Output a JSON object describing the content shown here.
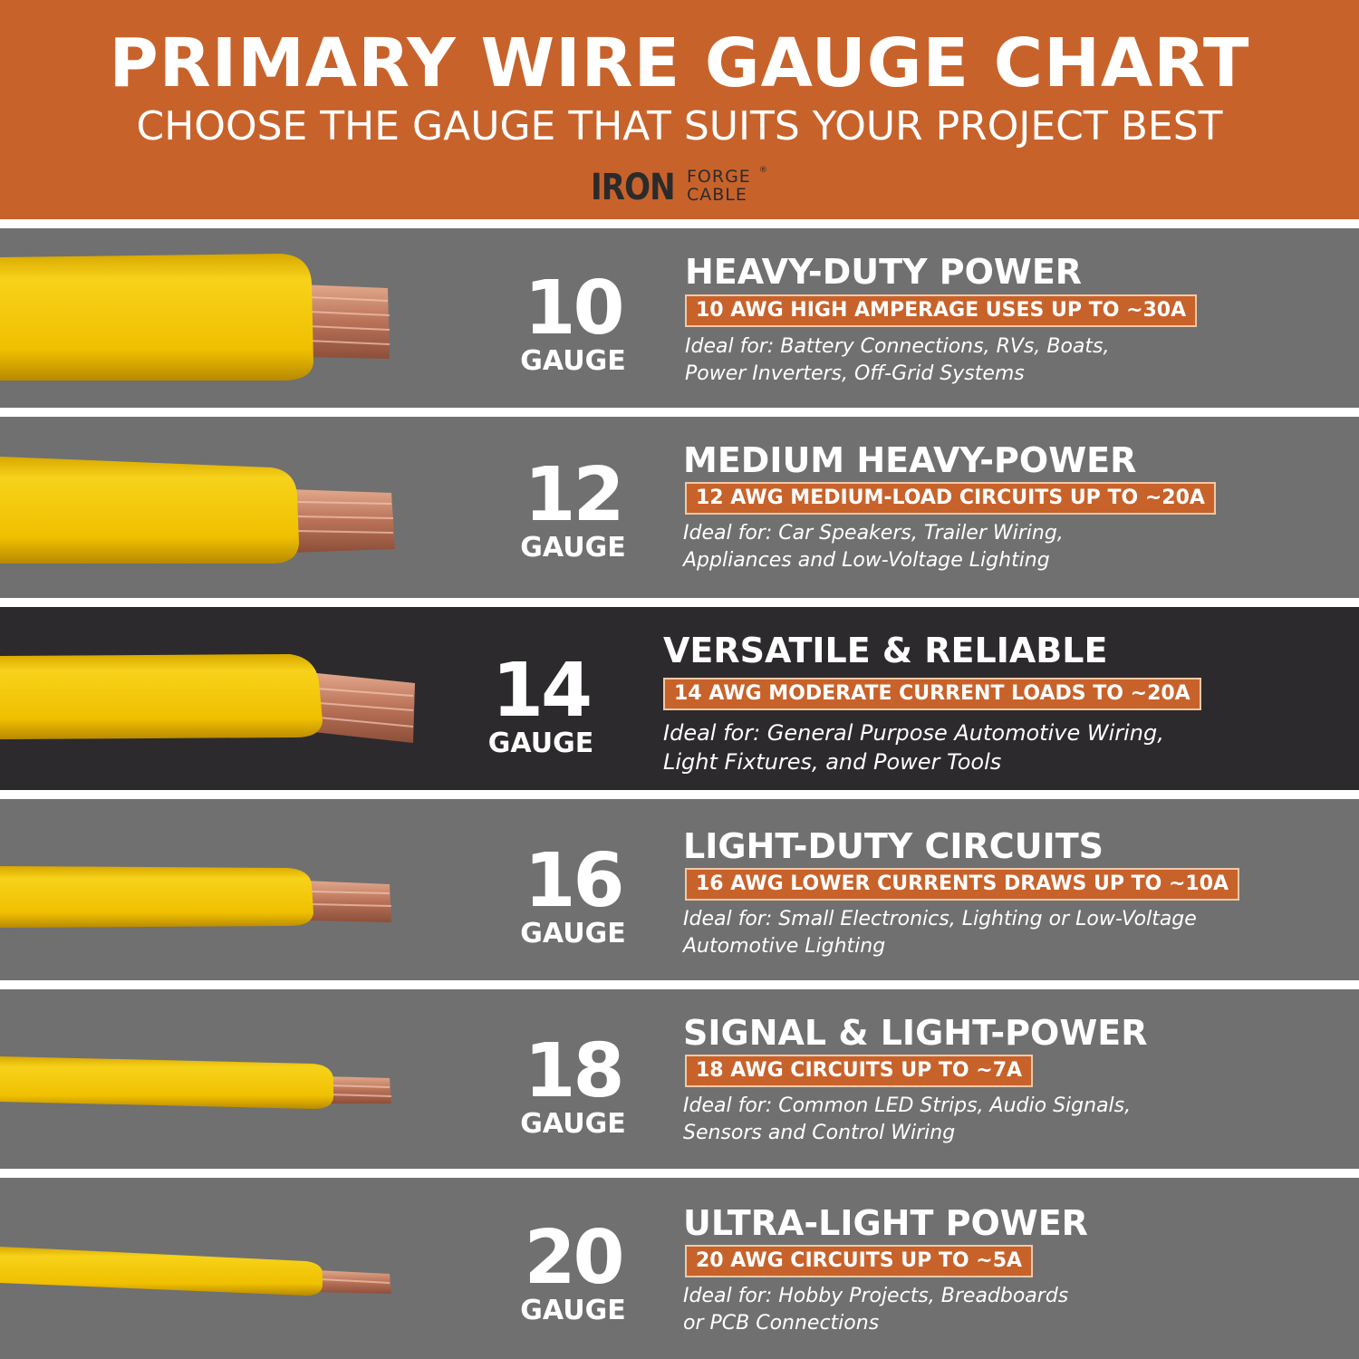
{
  "header": {
    "title": "PRIMARY WIRE GAUGE CHART",
    "subtitle": "CHOOSE THE GAUGE THAT SUITS YOUR PROJECT BEST",
    "logo": {
      "word1": "IRON",
      "word2": "FORGE",
      "word3": "CABLE",
      "mark": "®"
    }
  },
  "colors": {
    "brand_orange": "#c8622b",
    "row_gray": "#707070",
    "row_highlight": "#2c2a2c",
    "insulation_yellow": "#f2c200",
    "copper": "#c07c5e"
  },
  "rows": [
    {
      "number": "10",
      "unit": "GAUGE",
      "heading": "HEAVY-DUTY POWER",
      "badge": "10 AWG HIGH AMPERAGE USES UP TO ~30A",
      "desc_line1": "Ideal for: Battery Connections, RVs, Boats,",
      "desc_line2": "Power Inverters, Off-Grid Systems"
    },
    {
      "number": "12",
      "unit": "GAUGE",
      "heading": "MEDIUM HEAVY-POWER",
      "badge": "12 AWG MEDIUM-LOAD CIRCUITS UP TO ~20A",
      "desc_line1": "Ideal for: Car Speakers, Trailer Wiring,",
      "desc_line2": "Appliances and Low-Voltage Lighting"
    },
    {
      "number": "14",
      "unit": "GAUGE",
      "heading": "VERSATILE & RELIABLE",
      "badge": "14 AWG MODERATE CURRENT LOADS TO ~20A",
      "desc_line1": "Ideal for: General Purpose Automotive Wiring,",
      "desc_line2": "Light Fixtures, and Power Tools",
      "highlighted": true
    },
    {
      "number": "16",
      "unit": "GAUGE",
      "heading": "LIGHT-DUTY CIRCUITS",
      "badge": "16 AWG LOWER CURRENTS DRAWS UP TO ~10A",
      "desc_line1": "Ideal for: Small Electronics, Lighting or Low-Voltage",
      "desc_line2": "Automotive Lighting"
    },
    {
      "number": "18",
      "unit": "GAUGE",
      "heading": "SIGNAL & LIGHT-POWER",
      "badge": "18 AWG CIRCUITS UP TO ~7A",
      "desc_line1": "Ideal for: Common LED Strips, Audio Signals,",
      "desc_line2": "Sensors and Control Wiring"
    },
    {
      "number": "20",
      "unit": "GAUGE",
      "heading": "ULTRA-LIGHT POWER",
      "badge": "20 AWG CIRCUITS UP TO ~5A",
      "desc_line1": "Ideal for: Hobby Projects, Breadboards",
      "desc_line2": "or PCB Connections"
    }
  ]
}
